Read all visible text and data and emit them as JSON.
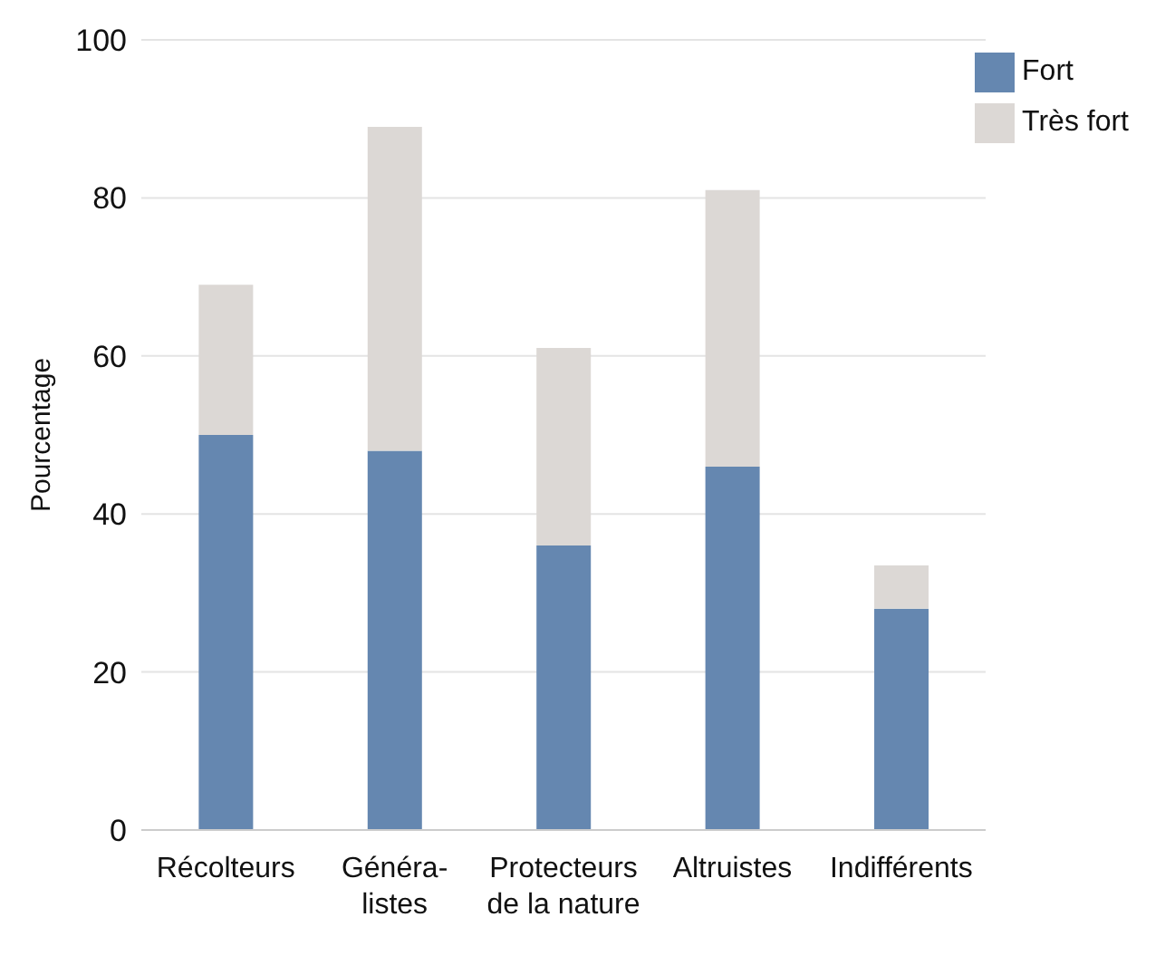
{
  "chart_data": {
    "type": "bar",
    "ylabel": "Pourcentage",
    "categories": [
      "Récolteurs",
      "Généra-\nlistes",
      "Protecteurs\nde la nature",
      "Altruistes",
      "Indifférents"
    ],
    "series": [
      {
        "name": "Fort",
        "color": "#6587b0",
        "values": [
          50,
          48,
          36,
          46,
          28
        ]
      },
      {
        "name": "Très fort",
        "color": "#dcd8d5",
        "values": [
          19,
          41,
          25,
          35,
          5.5
        ]
      }
    ],
    "stacked": true,
    "ylim": [
      0,
      100
    ],
    "yticks": [
      0,
      20,
      40,
      60,
      80,
      100
    ],
    "grid": "y",
    "legend": "top right"
  }
}
